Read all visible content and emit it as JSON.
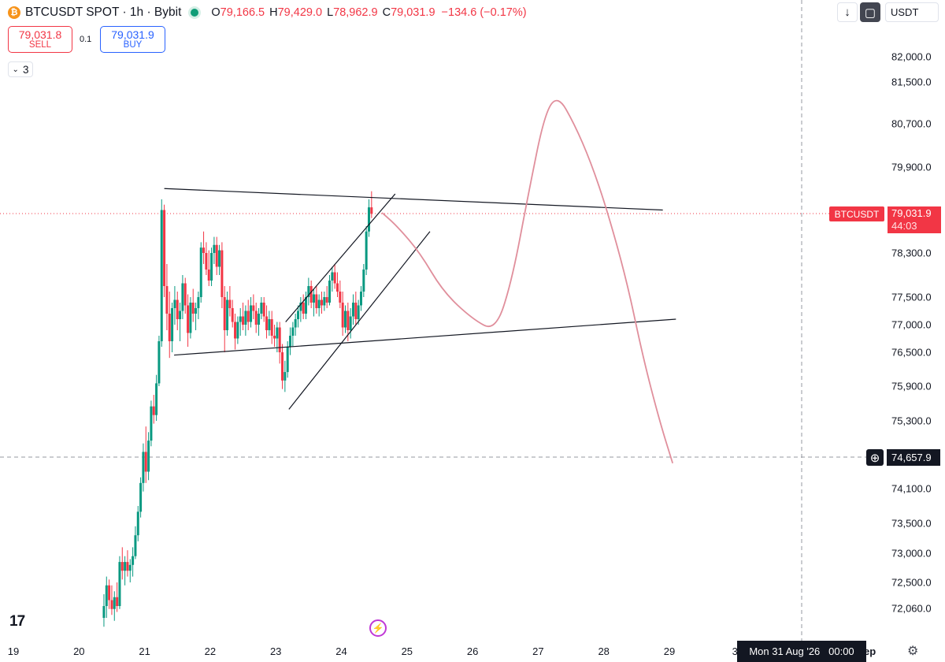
{
  "header": {
    "symbol": "BTCUSDT SPOT · 1h · Bybit",
    "ohlc": [
      {
        "k": "O",
        "v": "79,166.5"
      },
      {
        "k": "H",
        "v": "79,429.0"
      },
      {
        "k": "L",
        "v": "78,962.9"
      },
      {
        "k": "C",
        "v": "79,031.9"
      }
    ],
    "change": "−134.6 (−0.17%)"
  },
  "trade": {
    "sell_price": "79,031.8",
    "sell_label": "SELL",
    "spread": "0.1",
    "buy_price": "79,031.9",
    "buy_label": "BUY"
  },
  "indicators": {
    "count": "3"
  },
  "toolbar": {
    "currency": "USDT"
  },
  "price_label": {
    "name": "BTCUSDT",
    "price": "79,031.9",
    "countdown": "44:03"
  },
  "crosshair": {
    "price": "74,657.9",
    "date": "Mon 31 Aug '26   00:00"
  },
  "partial_tick": "ep",
  "chart_data": {
    "type": "candlestick",
    "title": "BTCUSDT SPOT · 1h · Bybit",
    "x_ticks": [
      "19",
      "20",
      "21",
      "22",
      "23",
      "24",
      "25",
      "26",
      "27",
      "28",
      "29",
      "3"
    ],
    "y_ticks": [
      "82,000.0",
      "81,500.0",
      "80,700.0",
      "79,900.0",
      "78,300.0",
      "77,500.0",
      "77,000.0",
      "76,500.0",
      "75,900.0",
      "75,300.0",
      "74,100.0",
      "73,500.0",
      "73,000.0",
      "72,500.0",
      "72,060.0"
    ],
    "last_price": 79031.9,
    "crosshair_price": 74657.9,
    "grid": false,
    "colors": {
      "up": "#089981",
      "down": "#f23645",
      "drawing": "#e08f9c",
      "trendline": "#131722"
    },
    "candles": [
      {
        "day": 20.38,
        "o": 71900,
        "h": 72300,
        "l": 71750,
        "c": 72100
      },
      {
        "day": 20.42,
        "o": 72100,
        "h": 72600,
        "l": 71900,
        "c": 72450
      },
      {
        "day": 20.46,
        "o": 72450,
        "h": 72550,
        "l": 72050,
        "c": 72200
      },
      {
        "day": 20.5,
        "o": 72200,
        "h": 72450,
        "l": 71950,
        "c": 72050
      },
      {
        "day": 20.54,
        "o": 72050,
        "h": 72350,
        "l": 71850,
        "c": 72250
      },
      {
        "day": 20.58,
        "o": 72250,
        "h": 72500,
        "l": 72000,
        "c": 72100
      },
      {
        "day": 20.62,
        "o": 72100,
        "h": 72950,
        "l": 72050,
        "c": 72850
      },
      {
        "day": 20.66,
        "o": 72850,
        "h": 73100,
        "l": 72550,
        "c": 72700
      },
      {
        "day": 20.7,
        "o": 72700,
        "h": 72950,
        "l": 72450,
        "c": 72850
      },
      {
        "day": 20.74,
        "o": 72850,
        "h": 73050,
        "l": 72600,
        "c": 72700
      },
      {
        "day": 20.78,
        "o": 72700,
        "h": 72900,
        "l": 72500,
        "c": 72800
      },
      {
        "day": 20.82,
        "o": 72800,
        "h": 73100,
        "l": 72600,
        "c": 72950
      },
      {
        "day": 20.86,
        "o": 72950,
        "h": 73450,
        "l": 72900,
        "c": 73300
      },
      {
        "day": 20.9,
        "o": 73300,
        "h": 73800,
        "l": 73200,
        "c": 73700
      },
      {
        "day": 20.94,
        "o": 73700,
        "h": 74300,
        "l": 73600,
        "c": 74200
      },
      {
        "day": 20.98,
        "o": 74200,
        "h": 74900,
        "l": 74050,
        "c": 74750
      },
      {
        "day": 21.02,
        "o": 74750,
        "h": 75200,
        "l": 74200,
        "c": 74400
      },
      {
        "day": 21.06,
        "o": 74400,
        "h": 75100,
        "l": 74250,
        "c": 74950
      },
      {
        "day": 21.1,
        "o": 74950,
        "h": 75650,
        "l": 74850,
        "c": 75550
      },
      {
        "day": 21.14,
        "o": 75550,
        "h": 75750,
        "l": 75250,
        "c": 75400
      },
      {
        "day": 21.18,
        "o": 75400,
        "h": 76100,
        "l": 75300,
        "c": 75950
      },
      {
        "day": 21.22,
        "o": 75950,
        "h": 76800,
        "l": 75900,
        "c": 76700
      },
      {
        "day": 21.26,
        "o": 76700,
        "h": 79300,
        "l": 76600,
        "c": 79100
      },
      {
        "day": 21.3,
        "o": 79100,
        "h": 79200,
        "l": 77500,
        "c": 77700
      },
      {
        "day": 21.34,
        "o": 77700,
        "h": 78100,
        "l": 76900,
        "c": 77200
      },
      {
        "day": 21.38,
        "o": 77200,
        "h": 77600,
        "l": 76400,
        "c": 76700
      },
      {
        "day": 21.42,
        "o": 76700,
        "h": 77400,
        "l": 76500,
        "c": 77300
      },
      {
        "day": 21.46,
        "o": 77300,
        "h": 77700,
        "l": 77000,
        "c": 77450
      },
      {
        "day": 21.5,
        "o": 77450,
        "h": 77600,
        "l": 76900,
        "c": 77100
      },
      {
        "day": 21.54,
        "o": 77100,
        "h": 77400,
        "l": 76700,
        "c": 77250
      },
      {
        "day": 21.58,
        "o": 77250,
        "h": 77900,
        "l": 77100,
        "c": 77750
      },
      {
        "day": 21.62,
        "o": 77750,
        "h": 77850,
        "l": 77200,
        "c": 77350
      },
      {
        "day": 21.66,
        "o": 77350,
        "h": 77550,
        "l": 76600,
        "c": 76850
      },
      {
        "day": 21.7,
        "o": 76850,
        "h": 77500,
        "l": 76750,
        "c": 77400
      },
      {
        "day": 21.74,
        "o": 77400,
        "h": 77650,
        "l": 77050,
        "c": 77200
      },
      {
        "day": 21.78,
        "o": 77200,
        "h": 77400,
        "l": 76900,
        "c": 77300
      },
      {
        "day": 21.82,
        "o": 77300,
        "h": 77600,
        "l": 77100,
        "c": 77500
      },
      {
        "day": 21.86,
        "o": 77500,
        "h": 78500,
        "l": 77400,
        "c": 78400
      },
      {
        "day": 21.9,
        "o": 78400,
        "h": 78700,
        "l": 78100,
        "c": 78300
      },
      {
        "day": 21.94,
        "o": 78300,
        "h": 78500,
        "l": 77900,
        "c": 78000
      },
      {
        "day": 21.98,
        "o": 78000,
        "h": 78350,
        "l": 77700,
        "c": 77800
      },
      {
        "day": 22.02,
        "o": 77800,
        "h": 78400,
        "l": 77700,
        "c": 78300
      },
      {
        "day": 22.06,
        "o": 78300,
        "h": 78600,
        "l": 78100,
        "c": 78450
      },
      {
        "day": 22.1,
        "o": 78450,
        "h": 78600,
        "l": 77900,
        "c": 78050
      },
      {
        "day": 22.14,
        "o": 78050,
        "h": 78450,
        "l": 77900,
        "c": 78350
      },
      {
        "day": 22.18,
        "o": 78350,
        "h": 78500,
        "l": 77300,
        "c": 77500
      },
      {
        "day": 22.22,
        "o": 77500,
        "h": 77700,
        "l": 76500,
        "c": 76900
      },
      {
        "day": 22.26,
        "o": 76900,
        "h": 77600,
        "l": 76800,
        "c": 77450
      },
      {
        "day": 22.3,
        "o": 77450,
        "h": 77700,
        "l": 77150,
        "c": 77300
      },
      {
        "day": 22.34,
        "o": 77300,
        "h": 77450,
        "l": 76950,
        "c": 77050
      },
      {
        "day": 22.38,
        "o": 77050,
        "h": 77200,
        "l": 76550,
        "c": 76750
      },
      {
        "day": 22.42,
        "o": 76750,
        "h": 77150,
        "l": 76650,
        "c": 77050
      },
      {
        "day": 22.46,
        "o": 77050,
        "h": 77300,
        "l": 76800,
        "c": 77150
      },
      {
        "day": 22.5,
        "o": 77150,
        "h": 77400,
        "l": 76900,
        "c": 77000
      },
      {
        "day": 22.54,
        "o": 77000,
        "h": 77350,
        "l": 76800,
        "c": 77250
      },
      {
        "day": 22.58,
        "o": 77250,
        "h": 77450,
        "l": 76900,
        "c": 77050
      },
      {
        "day": 22.62,
        "o": 77050,
        "h": 77500,
        "l": 76950,
        "c": 77350
      },
      {
        "day": 22.66,
        "o": 77350,
        "h": 77550,
        "l": 77100,
        "c": 77250
      },
      {
        "day": 22.7,
        "o": 77250,
        "h": 77400,
        "l": 76850,
        "c": 77000
      },
      {
        "day": 22.74,
        "o": 77000,
        "h": 77300,
        "l": 76800,
        "c": 77200
      },
      {
        "day": 22.78,
        "o": 77200,
        "h": 77500,
        "l": 77100,
        "c": 77400
      },
      {
        "day": 22.82,
        "o": 77400,
        "h": 77500,
        "l": 77050,
        "c": 77150
      },
      {
        "day": 22.86,
        "o": 77150,
        "h": 77350,
        "l": 76750,
        "c": 76900
      },
      {
        "day": 22.9,
        "o": 76900,
        "h": 77250,
        "l": 76800,
        "c": 77100
      },
      {
        "day": 22.94,
        "o": 77100,
        "h": 77250,
        "l": 76650,
        "c": 76800
      },
      {
        "day": 22.98,
        "o": 76800,
        "h": 77000,
        "l": 76600,
        "c": 76750
      },
      {
        "day": 23.02,
        "o": 76750,
        "h": 77050,
        "l": 76500,
        "c": 76950
      },
      {
        "day": 23.06,
        "o": 76950,
        "h": 77050,
        "l": 76300,
        "c": 76500
      },
      {
        "day": 23.1,
        "o": 76500,
        "h": 76650,
        "l": 75850,
        "c": 76000
      },
      {
        "day": 23.14,
        "o": 76000,
        "h": 76350,
        "l": 75800,
        "c": 76150
      },
      {
        "day": 23.18,
        "o": 76150,
        "h": 76700,
        "l": 76050,
        "c": 76600
      },
      {
        "day": 23.22,
        "o": 76600,
        "h": 76950,
        "l": 76450,
        "c": 76800
      },
      {
        "day": 23.26,
        "o": 76800,
        "h": 77050,
        "l": 76600,
        "c": 76950
      },
      {
        "day": 23.3,
        "o": 76950,
        "h": 77200,
        "l": 76800,
        "c": 77100
      },
      {
        "day": 23.34,
        "o": 77100,
        "h": 77350,
        "l": 76950,
        "c": 77250
      },
      {
        "day": 23.38,
        "o": 77250,
        "h": 77500,
        "l": 77050,
        "c": 77400
      },
      {
        "day": 23.42,
        "o": 77400,
        "h": 77550,
        "l": 77100,
        "c": 77200
      },
      {
        "day": 23.46,
        "o": 77200,
        "h": 77600,
        "l": 77100,
        "c": 77500
      },
      {
        "day": 23.5,
        "o": 77500,
        "h": 77850,
        "l": 77350,
        "c": 77700
      },
      {
        "day": 23.54,
        "o": 77700,
        "h": 77800,
        "l": 77300,
        "c": 77400
      },
      {
        "day": 23.58,
        "o": 77400,
        "h": 77650,
        "l": 77150,
        "c": 77550
      },
      {
        "day": 23.62,
        "o": 77550,
        "h": 77700,
        "l": 77200,
        "c": 77300
      },
      {
        "day": 23.66,
        "o": 77300,
        "h": 77550,
        "l": 77150,
        "c": 77450
      },
      {
        "day": 23.7,
        "o": 77450,
        "h": 77600,
        "l": 77200,
        "c": 77350
      },
      {
        "day": 23.74,
        "o": 77350,
        "h": 77600,
        "l": 77250,
        "c": 77500
      },
      {
        "day": 23.78,
        "o": 77500,
        "h": 77700,
        "l": 77300,
        "c": 77400
      },
      {
        "day": 23.82,
        "o": 77400,
        "h": 77900,
        "l": 77350,
        "c": 77800
      },
      {
        "day": 23.86,
        "o": 77800,
        "h": 78050,
        "l": 77600,
        "c": 77950
      },
      {
        "day": 23.9,
        "o": 77950,
        "h": 78100,
        "l": 77650,
        "c": 77750
      },
      {
        "day": 23.94,
        "o": 77750,
        "h": 77950,
        "l": 77500,
        "c": 77600
      },
      {
        "day": 23.98,
        "o": 77600,
        "h": 77800,
        "l": 77300,
        "c": 77400
      },
      {
        "day": 24.02,
        "o": 77400,
        "h": 77600,
        "l": 76800,
        "c": 76950
      },
      {
        "day": 24.06,
        "o": 76950,
        "h": 77350,
        "l": 76850,
        "c": 77250
      },
      {
        "day": 24.1,
        "o": 77250,
        "h": 77400,
        "l": 76700,
        "c": 76900
      },
      {
        "day": 24.14,
        "o": 76900,
        "h": 77300,
        "l": 76750,
        "c": 77150
      },
      {
        "day": 24.18,
        "o": 77150,
        "h": 77550,
        "l": 77000,
        "c": 77400
      },
      {
        "day": 24.22,
        "o": 77400,
        "h": 77600,
        "l": 77000,
        "c": 77100
      },
      {
        "day": 24.26,
        "o": 77100,
        "h": 77450,
        "l": 77000,
        "c": 77350
      },
      {
        "day": 24.3,
        "o": 77350,
        "h": 77700,
        "l": 77250,
        "c": 77600
      },
      {
        "day": 24.34,
        "o": 77600,
        "h": 78100,
        "l": 77500,
        "c": 78000
      },
      {
        "day": 24.38,
        "o": 78000,
        "h": 78800,
        "l": 77900,
        "c": 78700
      },
      {
        "day": 24.42,
        "o": 78700,
        "h": 79300,
        "l": 78600,
        "c": 79150
      },
      {
        "day": 24.46,
        "o": 79150,
        "h": 79450,
        "l": 78950,
        "c": 79030
      }
    ],
    "trendlines": [
      {
        "from": {
          "day": 21.3,
          "price": 79500
        },
        "to": {
          "day": 28.9,
          "price": 79100
        }
      },
      {
        "from": {
          "day": 21.45,
          "price": 76450
        },
        "to": {
          "day": 29.1,
          "price": 77100
        }
      },
      {
        "from": {
          "day": 23.15,
          "price": 77050
        },
        "to": {
          "day": 24.82,
          "price": 79400
        }
      },
      {
        "from": {
          "day": 23.2,
          "price": 75500
        },
        "to": {
          "day": 25.35,
          "price": 78700
        }
      }
    ],
    "projection": [
      {
        "day": 24.62,
        "price": 79050
      },
      {
        "day": 24.85,
        "price": 78800
      },
      {
        "day": 25.2,
        "price": 78300
      },
      {
        "day": 25.55,
        "price": 77600
      },
      {
        "day": 26.0,
        "price": 77100
      },
      {
        "day": 26.35,
        "price": 76880
      },
      {
        "day": 26.6,
        "price": 77800
      },
      {
        "day": 26.85,
        "price": 79400
      },
      {
        "day": 27.1,
        "price": 80900
      },
      {
        "day": 27.3,
        "price": 81250
      },
      {
        "day": 27.55,
        "price": 80700
      },
      {
        "day": 27.8,
        "price": 80000
      },
      {
        "day": 28.05,
        "price": 79100
      },
      {
        "day": 28.35,
        "price": 77800
      },
      {
        "day": 28.6,
        "price": 76400
      },
      {
        "day": 28.85,
        "price": 75300
      },
      {
        "day": 29.05,
        "price": 74550
      }
    ]
  }
}
